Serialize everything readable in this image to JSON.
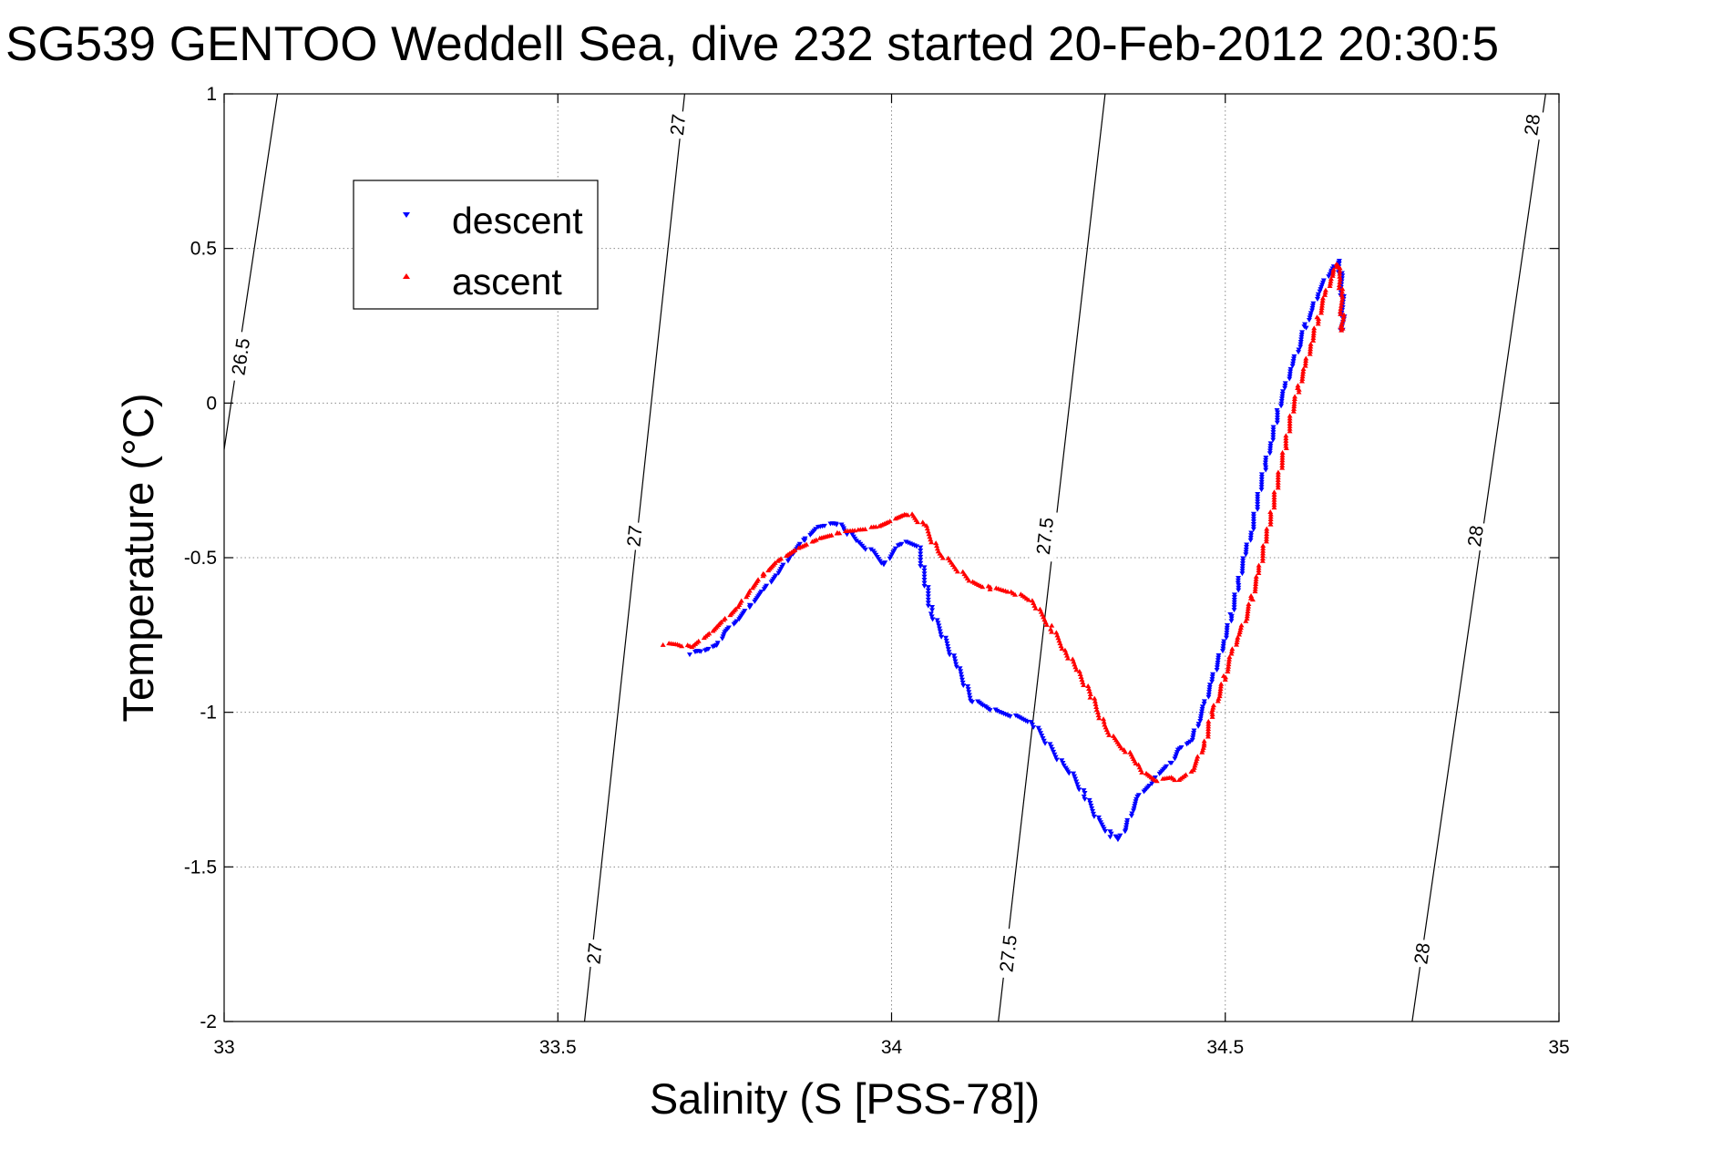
{
  "chart_data": {
    "type": "scatter",
    "title": "SG539 GENTOO Weddell Sea, dive 232 started 20-Feb-2012 20:30:5",
    "xlabel": "Salinity (S [PSS-78])",
    "ylabel": "Temperature (°C)",
    "xlim": [
      33,
      35
    ],
    "ylim": [
      -2,
      1
    ],
    "xticks": [
      33,
      33.5,
      34,
      34.5,
      35
    ],
    "xtick_labels": [
      "33",
      "33.5",
      "34",
      "34.5",
      "35"
    ],
    "yticks": [
      1,
      0.5,
      0,
      -0.5,
      -1,
      -1.5,
      -2
    ],
    "ytick_labels": [
      "1",
      "0.5",
      "0",
      "-0.5",
      "-1",
      "-1.5",
      "-2"
    ],
    "grid": true,
    "legend": {
      "placement": "top-left",
      "entries": [
        "descent",
        "ascent"
      ]
    },
    "series": [
      {
        "name": "descent",
        "color": "#0000ff",
        "marker": "triangle-down",
        "points": [
          [
            33.7,
            -0.81
          ],
          [
            33.71,
            -0.8
          ],
          [
            33.72,
            -0.8
          ],
          [
            33.73,
            -0.79
          ],
          [
            33.74,
            -0.78
          ],
          [
            33.75,
            -0.74
          ],
          [
            33.77,
            -0.7
          ],
          [
            33.79,
            -0.65
          ],
          [
            33.81,
            -0.6
          ],
          [
            33.83,
            -0.55
          ],
          [
            33.85,
            -0.49
          ],
          [
            33.87,
            -0.44
          ],
          [
            33.89,
            -0.4
          ],
          [
            33.91,
            -0.39
          ],
          [
            33.92,
            -0.39
          ],
          [
            33.93,
            -0.41
          ],
          [
            33.95,
            -0.45
          ],
          [
            33.97,
            -0.48
          ],
          [
            33.99,
            -0.52
          ],
          [
            34.01,
            -0.46
          ],
          [
            34.02,
            -0.45
          ],
          [
            34.04,
            -0.46
          ],
          [
            34.06,
            -0.68
          ],
          [
            34.07,
            -0.72
          ],
          [
            34.1,
            -0.86
          ],
          [
            34.12,
            -0.96
          ],
          [
            34.14,
            -0.98
          ],
          [
            34.16,
            -1.0
          ],
          [
            34.18,
            -1.01
          ],
          [
            34.21,
            -1.03
          ],
          [
            34.26,
            -1.18
          ],
          [
            34.27,
            -1.2
          ],
          [
            34.29,
            -1.27
          ],
          [
            34.3,
            -1.31
          ],
          [
            34.31,
            -1.35
          ],
          [
            34.33,
            -1.4
          ],
          [
            34.34,
            -1.41
          ],
          [
            34.35,
            -1.38
          ],
          [
            34.36,
            -1.32
          ],
          [
            34.37,
            -1.27
          ],
          [
            34.39,
            -1.23
          ],
          [
            34.4,
            -1.2
          ],
          [
            34.42,
            -1.16
          ],
          [
            34.43,
            -1.12
          ],
          [
            34.45,
            -1.09
          ],
          [
            34.46,
            -1.03
          ],
          [
            34.47,
            -0.97
          ],
          [
            34.48,
            -0.9
          ],
          [
            34.5,
            -0.76
          ],
          [
            34.51,
            -0.68
          ],
          [
            34.52,
            -0.58
          ],
          [
            34.53,
            -0.49
          ],
          [
            34.54,
            -0.41
          ],
          [
            34.55,
            -0.3
          ],
          [
            34.56,
            -0.2
          ],
          [
            34.57,
            -0.12
          ],
          [
            34.58,
            -0.02
          ],
          [
            34.59,
            0.05
          ],
          [
            34.6,
            0.12
          ],
          [
            34.61,
            0.18
          ],
          [
            34.62,
            0.25
          ],
          [
            34.63,
            0.3
          ],
          [
            34.64,
            0.36
          ],
          [
            34.65,
            0.4
          ],
          [
            34.66,
            0.43
          ],
          [
            34.67,
            0.46
          ],
          [
            34.673,
            0.41
          ],
          [
            34.675,
            0.36
          ],
          [
            34.676,
            0.31
          ],
          [
            34.676,
            0.27
          ],
          [
            34.675,
            0.24
          ],
          [
            34.672,
            0.23
          ]
        ]
      },
      {
        "name": "ascent",
        "color": "#ff0000",
        "marker": "triangle-up",
        "points": [
          [
            33.66,
            -0.78
          ],
          [
            33.68,
            -0.78
          ],
          [
            33.7,
            -0.79
          ],
          [
            33.73,
            -0.74
          ],
          [
            33.75,
            -0.7
          ],
          [
            33.77,
            -0.66
          ],
          [
            33.79,
            -0.6
          ],
          [
            33.81,
            -0.55
          ],
          [
            33.83,
            -0.51
          ],
          [
            33.86,
            -0.47
          ],
          [
            33.89,
            -0.44
          ],
          [
            33.92,
            -0.42
          ],
          [
            33.95,
            -0.41
          ],
          [
            33.98,
            -0.4
          ],
          [
            34.0,
            -0.38
          ],
          [
            34.02,
            -0.36
          ],
          [
            34.03,
            -0.36
          ],
          [
            34.05,
            -0.4
          ],
          [
            34.06,
            -0.44
          ],
          [
            34.07,
            -0.48
          ],
          [
            34.12,
            -0.58
          ],
          [
            34.15,
            -0.6
          ],
          [
            34.18,
            -0.61
          ],
          [
            34.21,
            -0.64
          ],
          [
            34.22,
            -0.67
          ],
          [
            34.24,
            -0.73
          ],
          [
            34.26,
            -0.8
          ],
          [
            34.28,
            -0.87
          ],
          [
            34.3,
            -0.95
          ],
          [
            34.31,
            -1.0
          ],
          [
            34.32,
            -1.05
          ],
          [
            34.33,
            -1.08
          ],
          [
            34.35,
            -1.12
          ],
          [
            34.37,
            -1.17
          ],
          [
            34.38,
            -1.2
          ],
          [
            34.4,
            -1.22
          ],
          [
            34.42,
            -1.21
          ],
          [
            34.43,
            -1.22
          ],
          [
            34.45,
            -1.19
          ],
          [
            34.47,
            -1.1
          ],
          [
            34.48,
            -1.0
          ],
          [
            34.49,
            -0.95
          ],
          [
            34.5,
            -0.88
          ],
          [
            34.51,
            -0.81
          ],
          [
            34.52,
            -0.75
          ],
          [
            34.53,
            -0.7
          ],
          [
            34.54,
            -0.63
          ],
          [
            34.55,
            -0.55
          ],
          [
            34.56,
            -0.45
          ],
          [
            34.57,
            -0.35
          ],
          [
            34.58,
            -0.24
          ],
          [
            34.59,
            -0.14
          ],
          [
            34.6,
            -0.03
          ],
          [
            34.61,
            0.05
          ],
          [
            34.62,
            0.12
          ],
          [
            34.63,
            0.2
          ],
          [
            34.64,
            0.28
          ],
          [
            34.65,
            0.35
          ],
          [
            34.66,
            0.41
          ],
          [
            34.665,
            0.44
          ],
          [
            34.668,
            0.45
          ],
          [
            34.672,
            0.4
          ],
          [
            34.674,
            0.34
          ],
          [
            34.675,
            0.29
          ],
          [
            34.676,
            0.26
          ],
          [
            34.675,
            0.24
          ],
          [
            34.673,
            0.23
          ]
        ]
      }
    ],
    "density_contours": [
      {
        "label": "26.5",
        "points": [
          [
            33.0,
            -0.15
          ],
          [
            33.08,
            1.0
          ]
        ],
        "label_positions": [
          [
            33.025,
            0.15
          ]
        ]
      },
      {
        "label": "27",
        "points": [
          [
            33.54,
            -2.0
          ],
          [
            33.69,
            1.0
          ]
        ],
        "label_positions": [
          [
            33.68,
            0.9
          ],
          [
            33.615,
            -0.43
          ],
          [
            33.555,
            -1.78
          ]
        ]
      },
      {
        "label": "27.5",
        "points": [
          [
            34.16,
            -2.0
          ],
          [
            34.32,
            1.0
          ]
        ],
        "label_positions": [
          [
            34.23,
            -0.43
          ],
          [
            34.175,
            -1.78
          ]
        ]
      },
      {
        "label": "28",
        "points": [
          [
            34.78,
            -2.0
          ],
          [
            34.98,
            1.0
          ]
        ],
        "label_positions": [
          [
            34.96,
            0.9
          ],
          [
            34.875,
            -0.43
          ],
          [
            34.795,
            -1.78
          ]
        ]
      }
    ]
  }
}
